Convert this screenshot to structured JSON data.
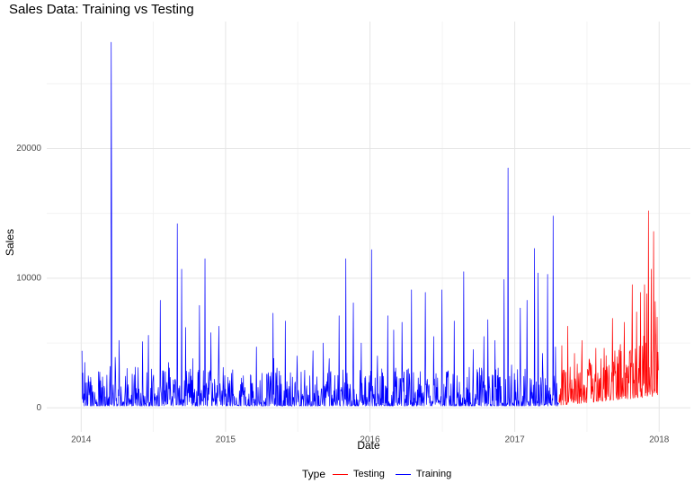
{
  "chart_data": {
    "type": "line",
    "title": "Sales Data: Training vs Testing",
    "xlabel": "Date",
    "ylabel": "Sales",
    "x_ticks": [
      "2014",
      "2015",
      "2016",
      "2017",
      "2018"
    ],
    "y_ticks": [
      0,
      10000,
      20000
    ],
    "xlim": [
      "2013-10-06",
      "2018-03-21"
    ],
    "ylim": [
      -1850,
      29800
    ],
    "grid": true,
    "legend": {
      "title": "Type",
      "position": "bottom"
    },
    "series": [
      {
        "name": "Training",
        "color": "#0000ff",
        "x_range": [
          "2014-01-03",
          "2017-04-22"
        ],
        "points": [
          [
            "2014-01-03",
            4400
          ],
          [
            "2014-01-10",
            3500
          ],
          [
            "2014-01-20",
            2000
          ],
          [
            "2014-02-15",
            2000
          ],
          [
            "2014-03-01",
            1500
          ],
          [
            "2014-03-15",
            3200
          ],
          [
            "2014-03-18",
            28200
          ],
          [
            "2014-03-19",
            16000
          ],
          [
            "2014-03-28",
            3900
          ],
          [
            "2014-04-07",
            5200
          ],
          [
            "2014-05-10",
            2600
          ],
          [
            "2014-06-05",
            5100
          ],
          [
            "2014-06-20",
            5600
          ],
          [
            "2014-07-20",
            8300
          ],
          [
            "2014-08-10",
            3500
          ],
          [
            "2014-09-01",
            14200
          ],
          [
            "2014-09-12",
            10700
          ],
          [
            "2014-09-22",
            6200
          ],
          [
            "2014-10-10",
            3800
          ],
          [
            "2014-10-27",
            7900
          ],
          [
            "2014-11-10",
            11500
          ],
          [
            "2014-11-25",
            5800
          ],
          [
            "2014-12-15",
            6300
          ],
          [
            "2015-01-10",
            1900
          ],
          [
            "2015-02-10",
            2300
          ],
          [
            "2015-03-20",
            4700
          ],
          [
            "2015-04-15",
            2600
          ],
          [
            "2015-05-01",
            7300
          ],
          [
            "2015-06-01",
            6700
          ],
          [
            "2015-07-01",
            4000
          ],
          [
            "2015-07-20",
            2900
          ],
          [
            "2015-08-10",
            4400
          ],
          [
            "2015-09-05",
            5000
          ],
          [
            "2015-09-20",
            3800
          ],
          [
            "2015-10-15",
            7100
          ],
          [
            "2015-11-01",
            11500
          ],
          [
            "2015-11-20",
            8100
          ],
          [
            "2015-12-10",
            5000
          ],
          [
            "2016-01-05",
            12200
          ],
          [
            "2016-01-20",
            4000
          ],
          [
            "2016-02-15",
            7100
          ],
          [
            "2016-03-01",
            6000
          ],
          [
            "2016-03-22",
            6600
          ],
          [
            "2016-04-15",
            9100
          ],
          [
            "2016-05-20",
            8900
          ],
          [
            "2016-06-10",
            5500
          ],
          [
            "2016-07-01",
            9100
          ],
          [
            "2016-08-01",
            6700
          ],
          [
            "2016-08-25",
            10500
          ],
          [
            "2016-09-18",
            4500
          ],
          [
            "2016-10-15",
            5500
          ],
          [
            "2016-10-25",
            6800
          ],
          [
            "2016-11-12",
            5200
          ],
          [
            "2016-12-05",
            9900
          ],
          [
            "2016-12-15",
            18500
          ],
          [
            "2017-01-15",
            7700
          ],
          [
            "2017-02-01",
            8300
          ],
          [
            "2017-02-20",
            12300
          ],
          [
            "2017-03-01",
            10400
          ],
          [
            "2017-03-12",
            4200
          ],
          [
            "2017-03-25",
            10300
          ],
          [
            "2017-04-08",
            14800
          ],
          [
            "2017-04-14",
            4700
          ]
        ]
      },
      {
        "name": "Testing",
        "color": "#ff0000",
        "x_range": [
          "2017-04-23",
          "2017-12-30"
        ],
        "points": [
          [
            "2017-04-30",
            4800
          ],
          [
            "2017-05-15",
            6300
          ],
          [
            "2017-06-01",
            4200
          ],
          [
            "2017-06-20",
            5200
          ],
          [
            "2017-07-05",
            2900
          ],
          [
            "2017-07-25",
            4600
          ],
          [
            "2017-08-15",
            4600
          ],
          [
            "2017-09-05",
            6900
          ],
          [
            "2017-09-25",
            4900
          ],
          [
            "2017-10-05",
            6600
          ],
          [
            "2017-10-25",
            9500
          ],
          [
            "2017-11-05",
            7400
          ],
          [
            "2017-11-15",
            8900
          ],
          [
            "2017-11-25",
            9500
          ],
          [
            "2017-12-01",
            8800
          ],
          [
            "2017-12-05",
            15200
          ],
          [
            "2017-12-12",
            10700
          ],
          [
            "2017-12-18",
            13600
          ],
          [
            "2017-12-22",
            8200
          ],
          [
            "2017-12-27",
            7000
          ],
          [
            "2017-12-30",
            2900
          ]
        ]
      }
    ]
  }
}
